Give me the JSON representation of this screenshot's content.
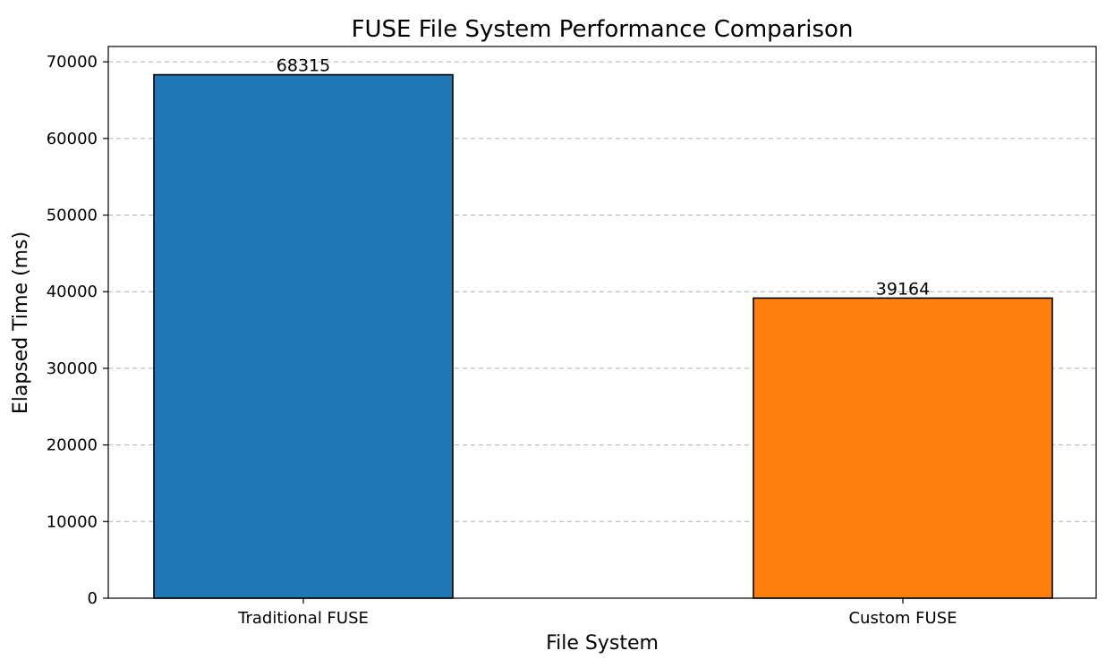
{
  "chart_data": {
    "type": "bar",
    "title": "FUSE File System Performance Comparison",
    "xlabel": "File System",
    "ylabel": "Elapsed Time (ms)",
    "categories": [
      "Traditional FUSE",
      "Custom FUSE"
    ],
    "values": [
      68315,
      39164
    ],
    "bar_labels": [
      "68315",
      "39164"
    ],
    "colors": [
      "#1f77b4",
      "#ff7f0e"
    ],
    "ylim": [
      0,
      72000
    ],
    "yticks": [
      0,
      10000,
      20000,
      30000,
      40000,
      50000,
      60000,
      70000
    ],
    "ytick_labels": [
      "0",
      "10000",
      "20000",
      "30000",
      "40000",
      "50000",
      "60000",
      "70000"
    ],
    "grid": "y-dashed",
    "legend": "none"
  }
}
